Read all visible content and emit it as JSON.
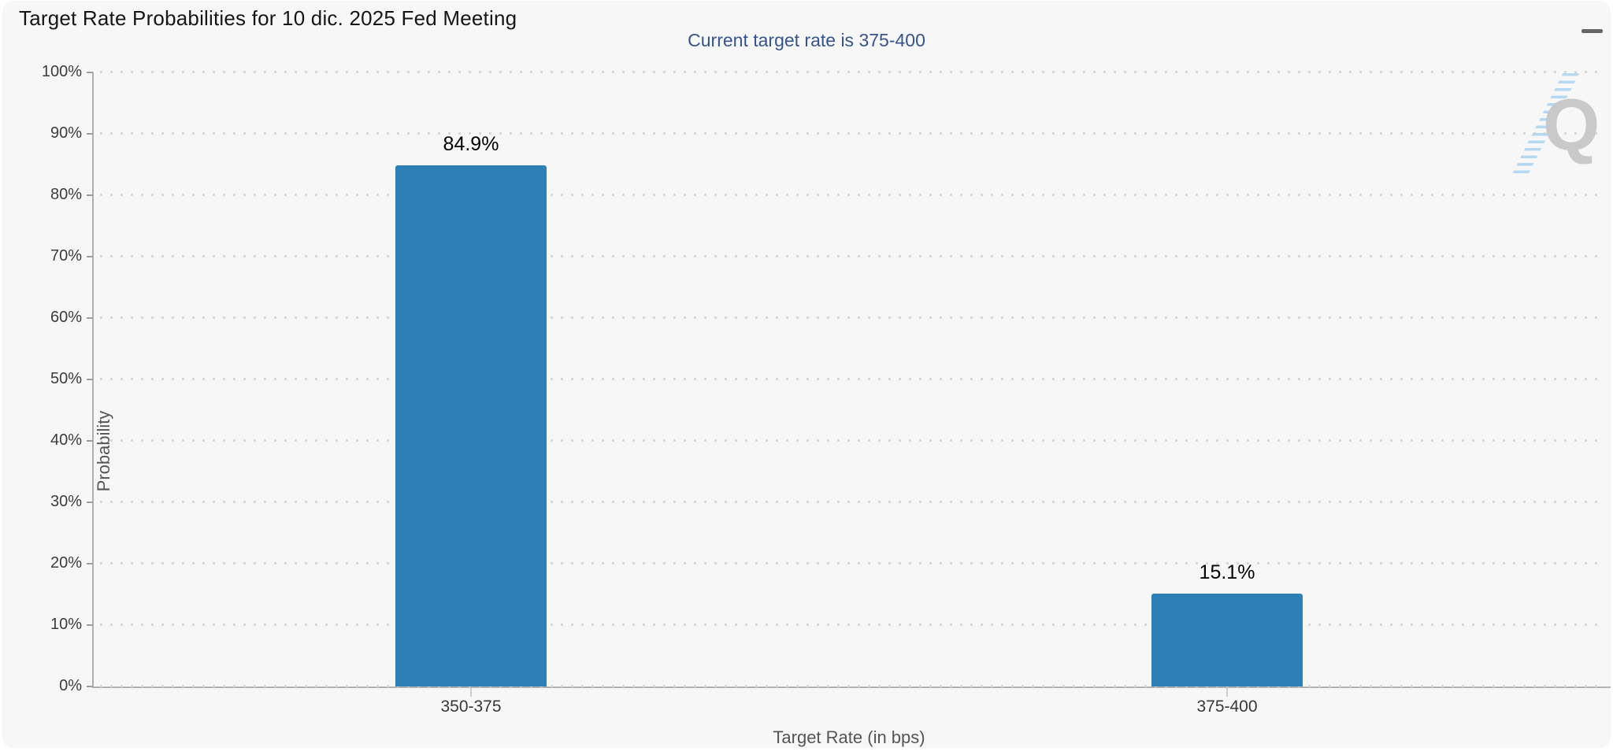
{
  "page": {
    "title": "Target Rate Probabilities for 10 dic. 2025 Fed Meeting"
  },
  "toolbar": {
    "menu_icon": "hamburger"
  },
  "colors": {
    "bar": "#2d7fb8",
    "subtitle": "#35548f",
    "card_bg": "#f7f7f7",
    "grid_dot": "#d9d9d9",
    "axis_line": "#b0b0b0",
    "watermark_gray": "#c9c9c9",
    "watermark_blue": "#a9d3f2"
  },
  "chart_data": {
    "type": "bar",
    "title": "Target Rate Probabilities for 10 dic. 2025 Fed Meeting",
    "subtitle": "Current target rate is 375-400",
    "categories": [
      "350-375",
      "375-400"
    ],
    "values": [
      84.9,
      15.1
    ],
    "value_labels": [
      "84.9%",
      "15.1%"
    ],
    "xlabel": "Target Rate (in bps)",
    "ylabel": "Probability",
    "ylim": [
      0,
      100
    ],
    "ytick_step": 10,
    "ytick_suffix": "%",
    "grid": "dotted horizontal",
    "legend": "none",
    "bar_color": "#2d7fb8"
  },
  "watermark": {
    "letter": "Q"
  }
}
